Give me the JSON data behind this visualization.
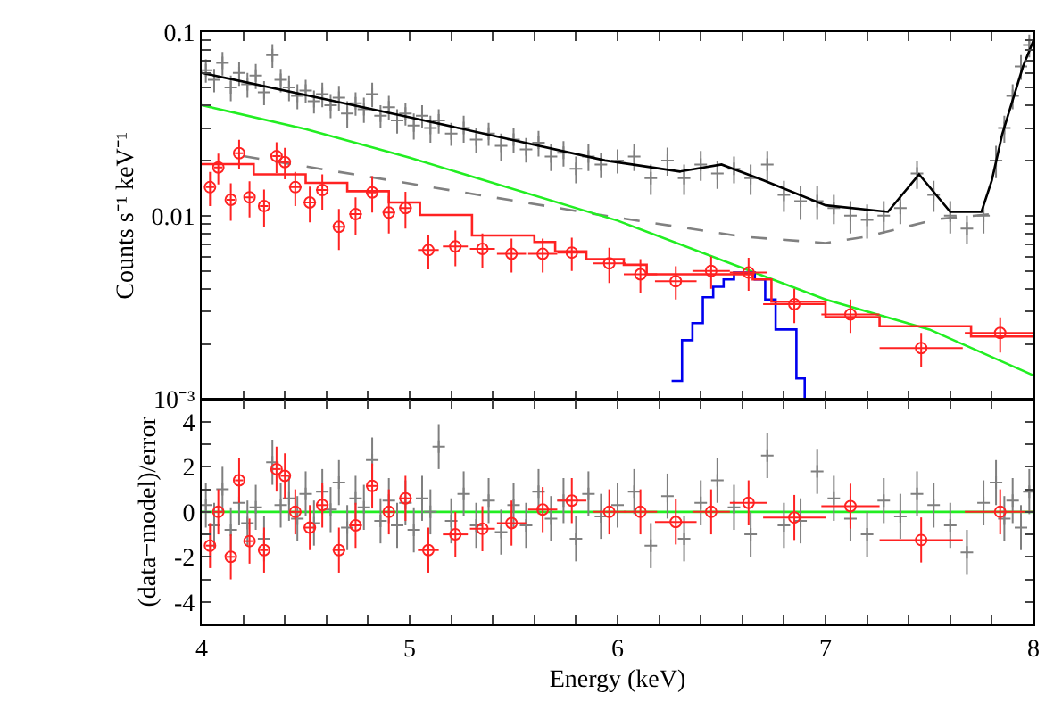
{
  "chart_data": [
    {
      "type": "scatter",
      "ylabel": "Counts s⁻¹ keV⁻¹",
      "xlim": [
        4,
        8
      ],
      "ylim": [
        0.001,
        0.1
      ],
      "log": "y",
      "grid": false,
      "tick_labels": "y",
      "xticks": [
        4,
        4.2,
        4.4,
        4.6,
        4.8,
        5,
        5.2,
        5.4,
        5.6,
        5.8,
        6,
        6.2,
        6.4,
        6.6,
        6.8,
        7,
        7.2,
        7.4,
        7.6,
        7.8,
        8
      ],
      "yticks": [
        {
          "value": 0.001,
          "label": "10⁻³"
        },
        {
          "value": 0.002,
          "label": null
        },
        {
          "value": 0.003,
          "label": null
        },
        {
          "value": 0.004,
          "label": null
        },
        {
          "value": 0.005,
          "label": null
        },
        {
          "value": 0.006,
          "label": null
        },
        {
          "value": 0.007,
          "label": null
        },
        {
          "value": 0.008,
          "label": null
        },
        {
          "value": 0.009,
          "label": null
        },
        0.01,
        {
          "value": 0.02,
          "label": null
        },
        {
          "value": 0.03,
          "label": null
        },
        {
          "value": 0.04,
          "label": null
        },
        {
          "value": 0.05,
          "label": null
        },
        {
          "value": 0.06,
          "label": null
        },
        {
          "value": 0.07,
          "label": null
        },
        {
          "value": 0.08,
          "label": null
        },
        {
          "value": 0.09,
          "label": null
        },
        0.1
      ],
      "series": [
        {
          "marker": "cross",
          "color": "#7f7f7f",
          "x": [
            4.02,
            4.06,
            4.1,
            4.14,
            4.18,
            4.22,
            4.26,
            4.3,
            4.34,
            4.38,
            4.42,
            4.46,
            4.5,
            4.54,
            4.58,
            4.62,
            4.66,
            4.7,
            4.74,
            4.78,
            4.82,
            4.86,
            4.9,
            4.94,
            4.98,
            5.02,
            5.06,
            5.1,
            5.14,
            5.2,
            5.26,
            5.32,
            5.38,
            5.44,
            5.5,
            5.56,
            5.62,
            5.68,
            5.74,
            5.8,
            5.86,
            5.92,
            6.0,
            6.08,
            6.16,
            6.24,
            6.32,
            6.4,
            6.48,
            6.56,
            6.64,
            6.72,
            6.8,
            6.88,
            6.96,
            7.04,
            7.12,
            7.2,
            7.28,
            7.36,
            7.44,
            7.52,
            7.6,
            7.68,
            7.76,
            7.82,
            7.86,
            7.9,
            7.94,
            7.98
          ],
          "values": [
            0.062,
            0.055,
            0.068,
            0.05,
            0.06,
            0.052,
            0.058,
            0.047,
            0.075,
            0.055,
            0.05,
            0.045,
            0.048,
            0.042,
            0.046,
            0.04,
            0.044,
            0.036,
            0.041,
            0.038,
            0.046,
            0.035,
            0.039,
            0.033,
            0.036,
            0.031,
            0.035,
            0.03,
            0.033,
            0.028,
            0.03,
            0.026,
            0.028,
            0.024,
            0.026,
            0.023,
            0.025,
            0.021,
            0.022,
            0.018,
            0.021,
            0.019,
            0.02,
            0.021,
            0.016,
            0.02,
            0.016,
            0.019,
            0.017,
            0.018,
            0.016,
            0.019,
            0.013,
            0.012,
            0.012,
            0.011,
            0.01,
            0.0095,
            0.01,
            0.011,
            0.017,
            0.013,
            0.01,
            0.0085,
            0.01,
            0.02,
            0.03,
            0.045,
            0.065,
            0.085
          ],
          "errors": [
            0.009,
            0.008,
            0.01,
            0.008,
            0.009,
            0.008,
            0.009,
            0.007,
            0.011,
            0.008,
            0.008,
            0.007,
            0.007,
            0.006,
            0.007,
            0.006,
            0.007,
            0.006,
            0.006,
            0.006,
            0.007,
            0.005,
            0.006,
            0.005,
            0.005,
            0.005,
            0.005,
            0.005,
            0.005,
            0.004,
            0.005,
            0.004,
            0.004,
            0.004,
            0.004,
            0.0035,
            0.004,
            0.0035,
            0.0035,
            0.003,
            0.0035,
            0.003,
            0.003,
            0.0035,
            0.003,
            0.0035,
            0.003,
            0.0035,
            0.003,
            0.003,
            0.003,
            0.0035,
            0.0025,
            0.0025,
            0.0025,
            0.002,
            0.002,
            0.002,
            0.002,
            0.002,
            0.003,
            0.0025,
            0.002,
            0.0015,
            0.002,
            0.004,
            0.005,
            0.007,
            0.01,
            0.012
          ]
        },
        {
          "type": "line",
          "color": "#000000",
          "x": [
            4.0,
            5.0,
            5.94,
            6.3,
            6.5,
            6.7,
            7.0,
            7.3,
            7.45,
            7.6,
            7.75,
            7.8,
            7.85,
            7.9,
            7.95,
            8.0
          ],
          "values": [
            0.06,
            0.0344,
            0.02,
            0.0174,
            0.019,
            0.0156,
            0.0114,
            0.0105,
            0.0168,
            0.0105,
            0.0105,
            0.0156,
            0.0278,
            0.0426,
            0.065,
            0.09
          ]
        },
        {
          "type": "line",
          "line_style": "dashed",
          "color": "#808080",
          "x": [
            4.2,
            5.94,
            6.6,
            7.0,
            7.2,
            7.54,
            7.8
          ],
          "values": [
            0.0211,
            0.01,
            0.0077,
            0.0071,
            0.0077,
            0.0096,
            0.0102
          ]
        },
        {
          "type": "line",
          "color": "#22ee22",
          "x": [
            4,
            4.5,
            5,
            6,
            7,
            7.5,
            8
          ],
          "values": [
            0.04,
            0.0296,
            0.0207,
            0.0094,
            0.0035,
            0.0024,
            0.00135
          ]
        },
        {
          "type": "step",
          "color": "#0000ee",
          "x": [
            6.26,
            6.31,
            6.36,
            6.41,
            6.46,
            6.51,
            6.56,
            6.61,
            6.66,
            6.71,
            6.76,
            6.86,
            6.9
          ],
          "values": [
            0.00126,
            0.0021,
            0.0026,
            0.0036,
            0.0041,
            0.0045,
            0.0049,
            0.0049,
            0.0045,
            0.0035,
            0.0024,
            0.0013,
            0.001
          ]
        },
        {
          "type": "step",
          "color": "#ff2222",
          "x": [
            4.0,
            4.25,
            4.5,
            4.7,
            4.9,
            5.05,
            5.3,
            5.6,
            5.7,
            5.85,
            6.03,
            6.14,
            6.4,
            6.65,
            6.74,
            7.0,
            7.26,
            7.7,
            8.0
          ],
          "values": [
            0.0191,
            0.0168,
            0.0151,
            0.0136,
            0.0118,
            0.0101,
            0.0078,
            0.0072,
            0.0064,
            0.0058,
            0.0054,
            0.0048,
            0.0048,
            0.0045,
            0.0034,
            0.0028,
            0.0025,
            0.0022,
            0.0022
          ]
        },
        {
          "marker": "circle",
          "color": "#ff2222",
          "x": [
            4.04,
            4.08,
            4.14,
            4.18,
            4.23,
            4.3,
            4.36,
            4.4,
            4.45,
            4.52,
            4.58,
            4.66,
            4.74,
            4.82,
            4.9,
            4.98,
            5.09,
            5.22,
            5.35,
            5.49,
            5.64,
            5.78,
            5.96,
            6.11,
            6.28,
            6.45,
            6.63,
            6.85,
            7.12,
            7.46,
            7.84
          ],
          "values": [
            0.0143,
            0.0183,
            0.0122,
            0.0219,
            0.0126,
            0.0113,
            0.0211,
            0.0196,
            0.0143,
            0.0118,
            0.0138,
            0.0087,
            0.0102,
            0.0134,
            0.0104,
            0.011,
            0.0065,
            0.0068,
            0.0066,
            0.0062,
            0.0062,
            0.0063,
            0.0055,
            0.0048,
            0.0044,
            0.005,
            0.0049,
            0.0033,
            0.0029,
            0.0019,
            0.0023
          ],
          "errors": [
            0.003,
            0.0035,
            0.0028,
            0.004,
            0.0028,
            0.0026,
            0.004,
            0.0038,
            0.003,
            0.0026,
            0.003,
            0.0022,
            0.0024,
            0.003,
            0.0024,
            0.0025,
            0.0014,
            0.0015,
            0.0014,
            0.0013,
            0.0013,
            0.0013,
            0.0012,
            0.001,
            0.0009,
            0.001,
            0.001,
            0.0007,
            0.0006,
            0.0004,
            0.0005
          ],
          "xerrors": [
            0.02,
            0.02,
            0.02,
            0.02,
            0.02,
            0.02,
            0.02,
            0.02,
            0.03,
            0.03,
            0.03,
            0.03,
            0.03,
            0.03,
            0.03,
            0.03,
            0.05,
            0.06,
            0.06,
            0.07,
            0.07,
            0.07,
            0.08,
            0.08,
            0.1,
            0.09,
            0.09,
            0.15,
            0.14,
            0.2,
            0.17
          ]
        }
      ]
    },
    {
      "type": "scatter",
      "xlabel": "Energy (keV)",
      "ylabel": "(data−model)/error",
      "xlim": [
        4,
        8
      ],
      "ylim": [
        -5,
        5
      ],
      "grid": false,
      "xticks": [
        4,
        {
          "value": 4.2,
          "label": null
        },
        {
          "value": 4.4,
          "label": null
        },
        {
          "value": 4.6,
          "label": null
        },
        {
          "value": 4.8,
          "label": null
        },
        5,
        {
          "value": 5.2,
          "label": null
        },
        {
          "value": 5.4,
          "label": null
        },
        {
          "value": 5.6,
          "label": null
        },
        {
          "value": 5.8,
          "label": null
        },
        6,
        {
          "value": 6.2,
          "label": null
        },
        {
          "value": 6.4,
          "label": null
        },
        {
          "value": 6.6,
          "label": null
        },
        {
          "value": 6.8,
          "label": null
        },
        7,
        {
          "value": 7.2,
          "label": null
        },
        {
          "value": 7.4,
          "label": null
        },
        {
          "value": 7.6,
          "label": null
        },
        {
          "value": 7.8,
          "label": null
        },
        8
      ],
      "yticks": [
        {
          "value": -5,
          "label": null
        },
        -4,
        {
          "value": -3,
          "label": null
        },
        -2,
        {
          "value": -1,
          "label": null
        },
        0,
        {
          "value": 1,
          "label": null
        },
        2,
        {
          "value": 3,
          "label": null
        },
        4,
        {
          "value": 5,
          "label": null
        }
      ],
      "ref_lines": [
        {
          "axis": "y",
          "value": 0,
          "color": "#22ee22"
        }
      ],
      "series": [
        {
          "marker": "cross",
          "color": "#7f7f7f",
          "x": [
            4.02,
            4.06,
            4.1,
            4.14,
            4.18,
            4.22,
            4.26,
            4.3,
            4.34,
            4.38,
            4.42,
            4.46,
            4.5,
            4.54,
            4.58,
            4.62,
            4.66,
            4.7,
            4.74,
            4.78,
            4.82,
            4.86,
            4.9,
            4.94,
            4.98,
            5.02,
            5.06,
            5.1,
            5.14,
            5.2,
            5.26,
            5.32,
            5.38,
            5.44,
            5.5,
            5.56,
            5.62,
            5.68,
            5.74,
            5.8,
            5.86,
            5.92,
            6.0,
            6.08,
            6.16,
            6.24,
            6.32,
            6.4,
            6.48,
            6.56,
            6.64,
            6.72,
            6.8,
            6.88,
            6.96,
            7.04,
            7.12,
            7.2,
            7.28,
            7.36,
            7.44,
            7.52,
            7.6,
            7.68,
            7.76,
            7.82,
            7.86,
            7.9,
            7.94,
            7.98
          ],
          "values": [
            0.3,
            -0.6,
            1.0,
            -0.8,
            0.4,
            -0.5,
            0.2,
            -1.2,
            2.2,
            0.3,
            0.6,
            -0.3,
            0.8,
            -0.5,
            0.9,
            0.1,
            1.3,
            -0.7,
            0.6,
            0.2,
            2.3,
            -0.4,
            0.5,
            -0.6,
            0.4,
            -0.8,
            0.6,
            0.0,
            2.9,
            -0.4,
            0.8,
            -0.6,
            0.5,
            -0.9,
            0.3,
            -0.6,
            0.9,
            -0.3,
            0.5,
            -1.2,
            0.8,
            -0.2,
            0.3,
            0.9,
            -1.5,
            0.7,
            -1.2,
            0.4,
            1.4,
            0.2,
            -1.0,
            2.5,
            -0.6,
            -0.4,
            1.8,
            0.6,
            -0.3,
            -1.0,
            0.5,
            -0.2,
            0.8,
            0.3,
            -0.6,
            -1.8,
            0.4,
            1.3,
            -0.3,
            0.5,
            -0.7,
            0.9
          ],
          "errors": [
            1,
            1,
            1,
            1,
            1,
            1,
            1,
            1,
            1,
            1,
            1,
            1,
            1,
            1,
            1,
            1,
            1,
            1,
            1,
            1,
            1,
            1,
            1,
            1,
            1,
            1,
            1,
            1,
            1,
            1,
            1,
            1,
            1,
            1,
            1,
            1,
            1,
            1,
            1,
            1,
            1,
            1,
            1,
            1,
            1,
            1,
            1,
            1,
            1,
            1,
            1,
            1,
            1,
            1,
            1,
            1,
            1,
            1,
            1,
            1,
            1,
            1,
            1,
            1,
            1,
            1,
            1,
            1,
            1,
            1
          ]
        },
        {
          "marker": "circle",
          "color": "#ff2222",
          "x": [
            4.04,
            4.08,
            4.14,
            4.18,
            4.23,
            4.3,
            4.36,
            4.4,
            4.45,
            4.52,
            4.58,
            4.66,
            4.74,
            4.82,
            4.9,
            4.98,
            5.09,
            5.22,
            5.35,
            5.49,
            5.64,
            5.78,
            5.96,
            6.11,
            6.28,
            6.45,
            6.63,
            6.85,
            7.12,
            7.46,
            7.84
          ],
          "values": [
            -1.5,
            0.0,
            -2.0,
            1.4,
            -1.3,
            -1.7,
            1.9,
            1.6,
            0.0,
            -0.7,
            0.3,
            -1.7,
            -0.6,
            1.15,
            0.0,
            0.6,
            -1.7,
            -1.0,
            -0.75,
            -0.5,
            0.1,
            0.5,
            0.0,
            0.0,
            -0.45,
            0.0,
            0.4,
            -0.25,
            0.25,
            -1.25,
            0.0
          ],
          "errors": [
            1,
            1,
            1,
            1,
            1,
            1,
            1,
            1,
            1,
            1,
            1,
            1,
            1,
            1,
            1,
            1,
            1,
            1,
            1,
            1,
            1,
            1,
            1,
            1,
            1,
            1,
            1,
            1,
            1,
            1,
            1
          ],
          "xerrors": [
            0.02,
            0.02,
            0.02,
            0.02,
            0.02,
            0.02,
            0.02,
            0.02,
            0.03,
            0.03,
            0.03,
            0.03,
            0.03,
            0.03,
            0.03,
            0.03,
            0.05,
            0.06,
            0.06,
            0.07,
            0.07,
            0.07,
            0.08,
            0.08,
            0.1,
            0.09,
            0.09,
            0.15,
            0.14,
            0.2,
            0.17
          ]
        }
      ]
    }
  ]
}
